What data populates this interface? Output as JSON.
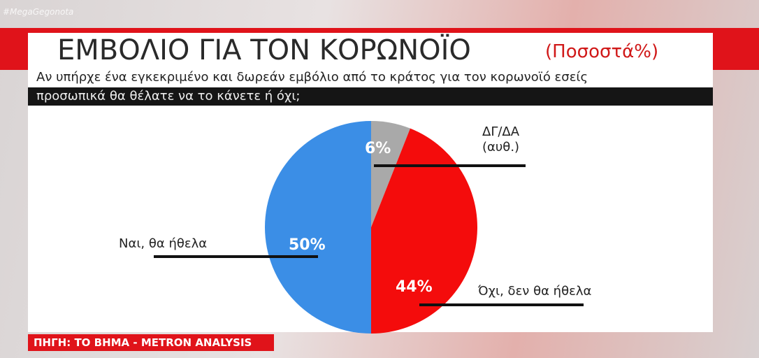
{
  "hashtag": "#MegaGegonota",
  "source": "ΠΗΓΗ: ΤΟ ΒΗΜΑ - METRON ANALYSIS",
  "chart_data": {
    "type": "pie",
    "title": "ΕΜΒΟΛΙΟ ΓΙΑ ΤΟΝ ΚΟΡΩΝΟΪΟ",
    "unit_label": "(Ποσοστά%)",
    "subtitle": [
      "Αν υπήρχε ένα εγκεκριμένο και δωρεάν εμβόλιο από το κράτος για τον κορωνοϊό εσείς",
      "προσωπικά θα θέλατε να το κάνετε ή όχι;"
    ],
    "categories": [
      "ΔΓ/ΔΑ\n(αυθ.)",
      "Όχι, δεν θα ήθελα",
      "Ναι, θα ήθελα"
    ],
    "values": [
      6,
      44,
      50
    ],
    "value_labels": [
      "6%",
      "44%",
      "50%"
    ],
    "colors": [
      "#a9a9a9",
      "#f40c0c",
      "#3b8ee6"
    ]
  }
}
